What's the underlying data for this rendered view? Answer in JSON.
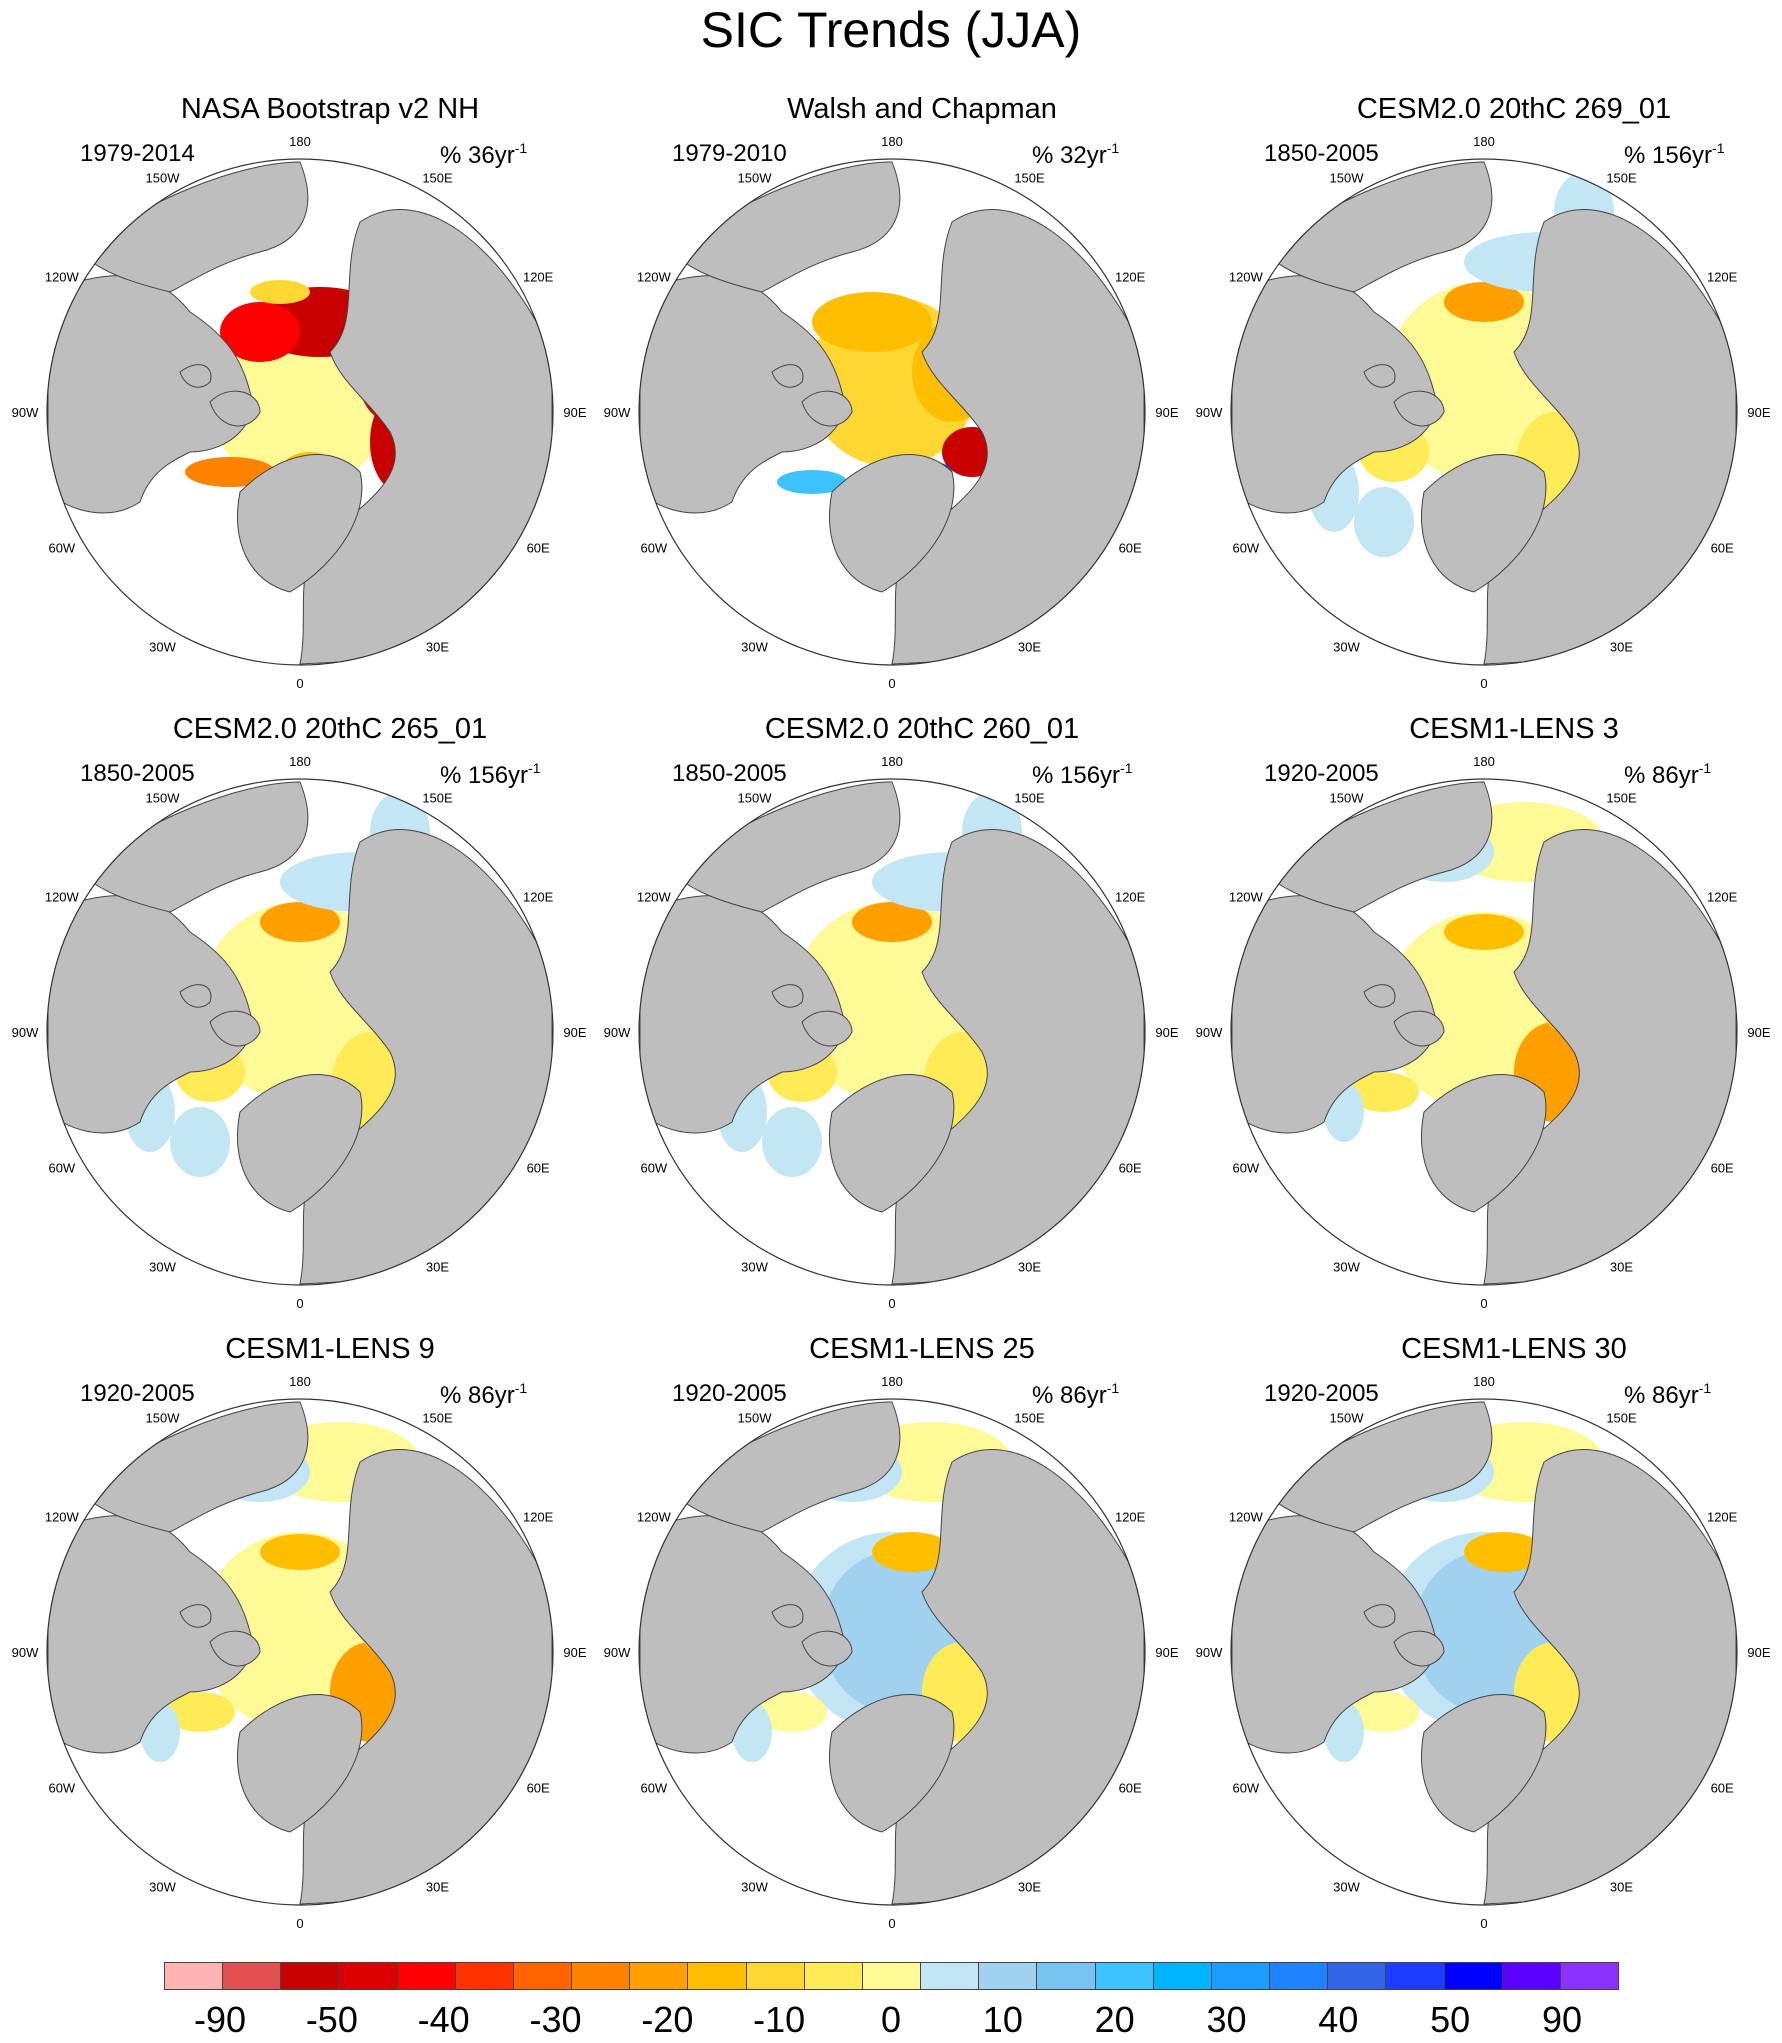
{
  "title": "SIC Trends (JJA)",
  "meridian_labels": [
    "180",
    "150E",
    "120E",
    "90E",
    "60E",
    "30E",
    "0",
    "30W",
    "60W",
    "90W",
    "120W",
    "150W"
  ],
  "colors": {
    "land": "#bebebe",
    "ocean": "#ffffff",
    "coast": "#444444"
  },
  "panels": [
    {
      "title": "NASA Bootstrap v2 NH",
      "period": "1979-2014",
      "units": "% 36yr",
      "units_exp": "-1",
      "pattern": "obs_strong"
    },
    {
      "title": "Walsh and Chapman",
      "period": "1979-2010",
      "units": "% 32yr",
      "units_exp": "-1",
      "pattern": "obs_mixed"
    },
    {
      "title": "CESM2.0 20thC 269_01",
      "period": "1850-2005",
      "units": "% 156yr",
      "units_exp": "-1",
      "pattern": "model_weak"
    },
    {
      "title": "CESM2.0 20thC 265_01",
      "period": "1850-2005",
      "units": "% 156yr",
      "units_exp": "-1",
      "pattern": "model_weak"
    },
    {
      "title": "CESM2.0 20thC 260_01",
      "period": "1850-2005",
      "units": "% 156yr",
      "units_exp": "-1",
      "pattern": "model_weak"
    },
    {
      "title": "CESM1-LENS 3",
      "period": "1920-2005",
      "units": "% 86yr",
      "units_exp": "-1",
      "pattern": "model_moderate"
    },
    {
      "title": "CESM1-LENS 9",
      "period": "1920-2005",
      "units": "% 86yr",
      "units_exp": "-1",
      "pattern": "model_moderate"
    },
    {
      "title": "CESM1-LENS 25",
      "period": "1920-2005",
      "units": "% 86yr",
      "units_exp": "-1",
      "pattern": "model_blue"
    },
    {
      "title": "CESM1-LENS 30",
      "period": "1920-2005",
      "units": "% 86yr",
      "units_exp": "-1",
      "pattern": "model_blue"
    }
  ],
  "colorbar": {
    "colors": [
      "#ffb4b4",
      "#e05050",
      "#c80000",
      "#dc0000",
      "#ff0000",
      "#ff3200",
      "#ff6400",
      "#ff8200",
      "#ffa000",
      "#ffbe00",
      "#ffd732",
      "#ffeb55",
      "#fffa96",
      "#c3e6f5",
      "#a0d2f0",
      "#78c3f0",
      "#3cc3ff",
      "#00b4ff",
      "#1e9bff",
      "#1e82ff",
      "#3264e6",
      "#1e3cff",
      "#0000ff",
      "#5a00ff",
      "#8c32ff"
    ],
    "labels": [
      "-90",
      "-50",
      "-40",
      "-30",
      "-20",
      "-10",
      "0",
      "10",
      "20",
      "30",
      "40",
      "50",
      "90"
    ]
  }
}
